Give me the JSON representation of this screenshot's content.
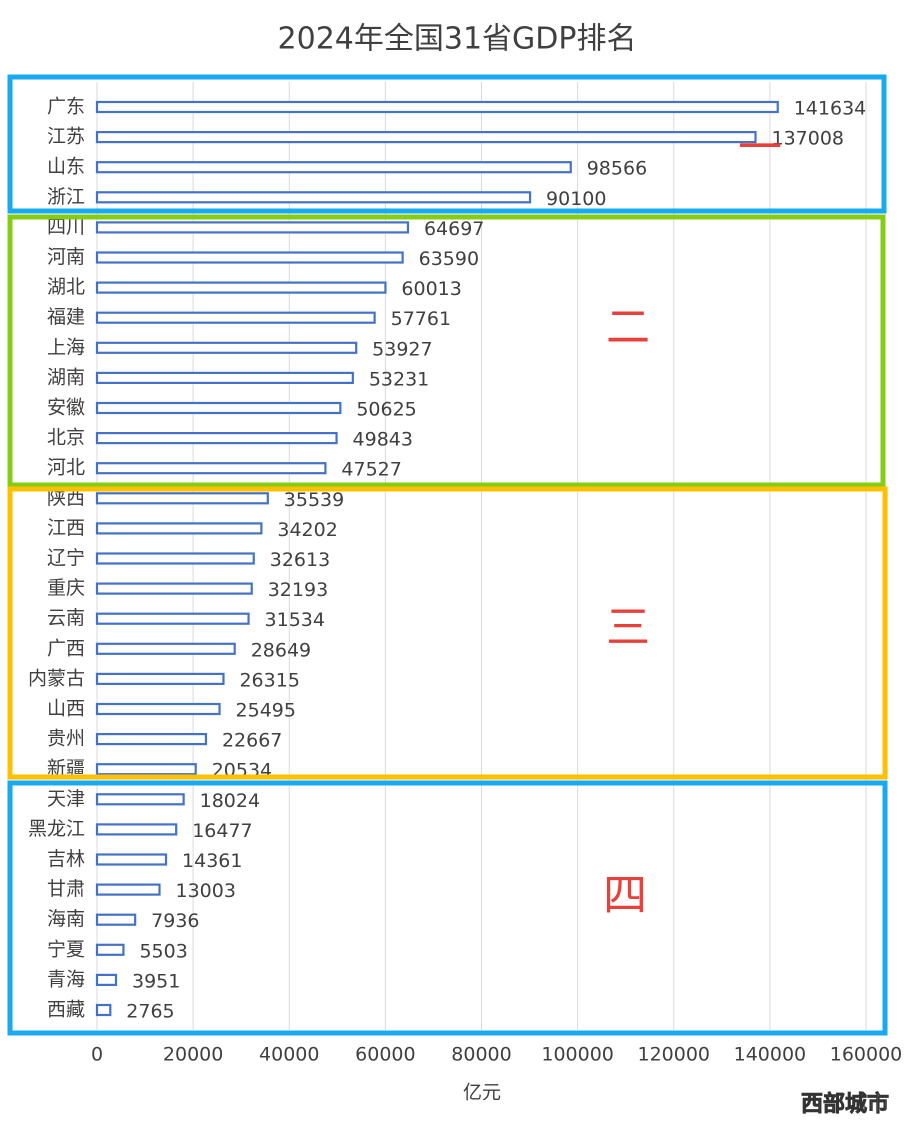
{
  "chart_data": {
    "type": "barh",
    "title": "2024年全国31省GDP排名",
    "categories": [
      "广东",
      "江苏",
      "山东",
      "浙江",
      "四川",
      "河南",
      "湖北",
      "福建",
      "上海",
      "湖南",
      "安徽",
      "北京",
      "河北",
      "陕西",
      "江西",
      "辽宁",
      "重庆",
      "云南",
      "广西",
      "内蒙古",
      "山西",
      "贵州",
      "新疆",
      "天津",
      "黑龙江",
      "吉林",
      "甘肃",
      "海南",
      "宁夏",
      "青海",
      "西藏"
    ],
    "values": [
      141634,
      137008,
      98566,
      90100,
      64697,
      63590,
      60013,
      57761,
      53927,
      53231,
      50625,
      49843,
      47527,
      35539,
      34202,
      32613,
      32193,
      31534,
      28649,
      26315,
      25495,
      22667,
      20534,
      18024,
      16477,
      14361,
      13003,
      7936,
      5503,
      3951,
      2765
    ],
    "color": "#4472c4",
    "xlim": [
      0,
      160000
    ],
    "xticks": [
      0,
      20000,
      40000,
      60000,
      80000,
      100000,
      120000,
      140000,
      160000
    ],
    "xlabel": "亿元",
    "grid": true,
    "annotations": [
      "一",
      "二",
      "三",
      "四"
    ]
  },
  "watermark": "西部城市"
}
